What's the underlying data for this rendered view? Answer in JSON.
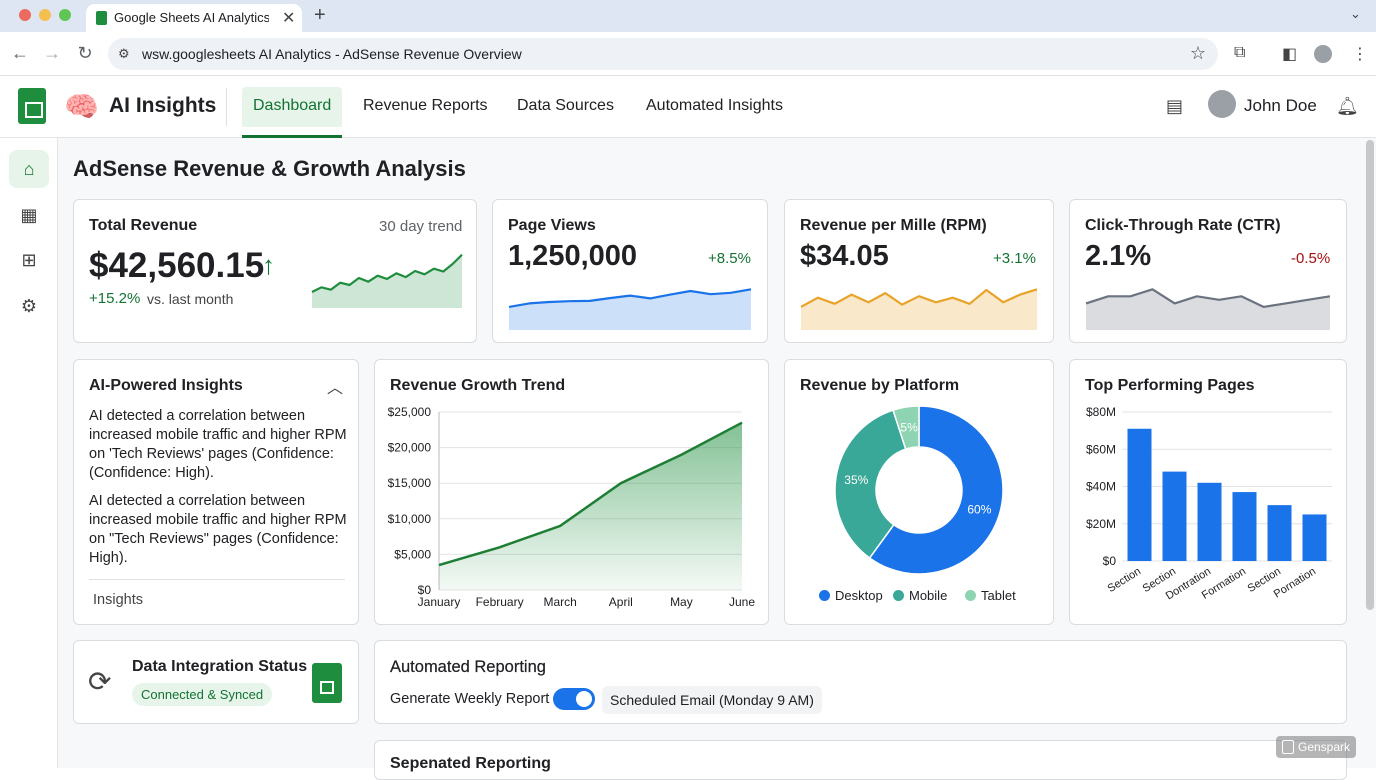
{
  "browser": {
    "tab_title": "Google Sheets AI Analytics -",
    "address": "wsw.googlesheets AI Analytics - AdSense Revenue Overview"
  },
  "app": {
    "title": "AI Insights",
    "nav": [
      "Dashboard",
      "Revenue Reports",
      "Data Sources",
      "Automated Insights"
    ],
    "active_nav": "Dashboard",
    "user_name": "John Doe"
  },
  "page_title": "AdSense Revenue & Growth Analysis",
  "kpis": {
    "revenue": {
      "title": "Total Revenue",
      "trend_label": "30 day trend",
      "value": "$42,560.15",
      "delta": "+15.2%",
      "delta_suffix": "vs. last month"
    },
    "views": {
      "title": "Page Views",
      "value": "1,250,000",
      "delta": "+8.5%"
    },
    "rpm": {
      "title": "Revenue per Mille (RPM)",
      "value": "$34.05",
      "delta": "+3.1%"
    },
    "ctr": {
      "title": "Click-Through Rate (CTR)",
      "value": "2.1%",
      "delta": "-0.5%"
    }
  },
  "insights": {
    "title": "AI-Powered Insights",
    "items": [
      "AI detected a correlation between increased mobile traffic and higher RPM on 'Tech Reviews' pages (Confidence: (Confidence: High).",
      "AI detected a correlation between increased mobile traffic and higher RPM on \"Tech Reviews\" pages (Confidence: High)."
    ],
    "footer": "Insights"
  },
  "integration": {
    "title": "Data Integration Status",
    "status": "Connected & Synced"
  },
  "reporting": {
    "title": "Automated Reporting",
    "weekly_label": "Generate Weekly Report",
    "weekly_on": true,
    "schedule": "Scheduled Email (Monday 9 AM)",
    "next_title": "Sepenated Reporting"
  },
  "badge": "Genspark",
  "colors": {
    "green": "#1e8e3e",
    "blue": "#1a73e8",
    "teal": "#3aa898",
    "lightgreen": "#8fd4b2",
    "orange": "#e8a42a",
    "gray": "#6b7280",
    "red": "#a50e0e"
  },
  "chart_data": [
    {
      "id": "growth",
      "type": "area",
      "title": "Revenue Growth Trend",
      "categories": [
        "January",
        "February",
        "March",
        "April",
        "May",
        "June"
      ],
      "values": [
        3500,
        6000,
        9000,
        15000,
        19000,
        23500
      ],
      "ylim": [
        0,
        25000
      ],
      "yticks": [
        "$0",
        "$5,000",
        "$10,000",
        "$15,000",
        "$20,000",
        "$25,000"
      ],
      "grid": true
    },
    {
      "id": "platform",
      "type": "pie",
      "title": "Revenue by Platform",
      "labels": [
        "Desktop",
        "Mobile",
        "Tablet"
      ],
      "values": [
        60,
        35,
        5
      ],
      "slice_labels": [
        "60%",
        "35%",
        "5%"
      ],
      "donut": true,
      "legend": "bottom"
    },
    {
      "id": "pages",
      "type": "bar",
      "title": "Top Performing Pages",
      "categories": [
        "Section",
        "Section",
        "Dontration",
        "Formation",
        "Section",
        "Pornation"
      ],
      "values": [
        71,
        48,
        42,
        37,
        30,
        25
      ],
      "ylim": [
        0,
        80
      ],
      "yticks": [
        "$0",
        "$20M",
        "$40M",
        "$60M",
        "$80M"
      ],
      "grid": true
    },
    {
      "id": "spark-revenue",
      "type": "area",
      "values": [
        3,
        4,
        3.5,
        5,
        4.5,
        6,
        5.2,
        6.5,
        5.8,
        7,
        6.2,
        7.5,
        6.8,
        8,
        7.4,
        9,
        11
      ],
      "ylim": [
        0,
        12
      ]
    },
    {
      "id": "spark-views",
      "type": "area",
      "values": [
        2,
        3,
        3.4,
        3.6,
        3.7,
        4.5,
        5.2,
        4.4,
        5.5,
        6.5,
        5.6,
        6,
        7
      ]
    },
    {
      "id": "spark-rpm",
      "type": "area",
      "values": [
        4,
        5.2,
        4.4,
        5.6,
        4.6,
        5.8,
        4.3,
        5.4,
        4.6,
        5.2,
        4.4,
        6.2,
        4.6,
        5.6,
        6.3
      ]
    },
    {
      "id": "spark-ctr",
      "type": "area",
      "values": [
        5,
        5.1,
        5.1,
        5.2,
        5,
        5.1,
        5.05,
        5.1,
        4.95,
        5,
        5.05,
        5.1
      ]
    }
  ]
}
